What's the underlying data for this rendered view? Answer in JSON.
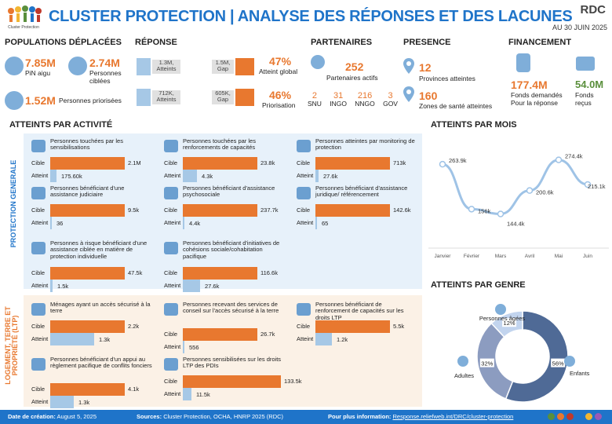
{
  "header": {
    "title": "CLUSTER PROTECTION | ANALYSE DES RÉPONSES ET DES LACUNES",
    "country": "RDC",
    "date": "AU 30 JUIN 2025",
    "logo_text": "Cluster Protection"
  },
  "populations": {
    "title": "POPULATIONS DÉPLACÉES",
    "pin_value": "7.85M",
    "pin_label": "PiN aigu",
    "cible_value": "2.74M",
    "cible_label": "Personnes ciblées",
    "prior_value": "1.52M",
    "prior_label": "Personnes priorisées"
  },
  "reponse": {
    "title": "RÉPONSE",
    "row1_left": "1.3M,",
    "row1_left2": "Atteints",
    "row1_right": "1.5M,",
    "row1_right2": "Gap",
    "row1_pct": "47%",
    "row1_label": "Atteint global",
    "row2_left": "712K,",
    "row2_left2": "Atteints",
    "row2_right": "605K,",
    "row2_right2": "Gap",
    "row2_pct": "46%",
    "row2_label": "Priorisation"
  },
  "partenaires": {
    "title": "PARTENAIRES",
    "total": "252",
    "total_label": "Partenaires actifs",
    "types": [
      {
        "value": "2",
        "label": "SNU"
      },
      {
        "value": "31",
        "label": "INGO"
      },
      {
        "value": "216",
        "label": "NNGO"
      },
      {
        "value": "3",
        "label": "GOV"
      }
    ]
  },
  "presence": {
    "title": "PRESENCE",
    "prov_value": "12",
    "prov_label": "Provinces atteintes",
    "zones_value": "160",
    "zones_label": "Zones de santé atteintes"
  },
  "financement": {
    "title": "FINANCEMENT",
    "demandes_value": "177.4M",
    "demandes_label": "Fonds demandés Pour la réponse",
    "recus_value": "54.0M",
    "recus_label": "Fonds reçus"
  },
  "activites": {
    "title": "ATTEINTS PAR ACTIVITÉ",
    "cible_label": "Cible",
    "atteint_label": "Atteint",
    "prot_label": "PROTECTION GENERALE",
    "ltp_label": "LOGEMENT, TERRE ET PROPRIÉTÉ (LTP)",
    "prot": [
      {
        "title": "Personnes touchées par les sensibilisations",
        "cible": "2.1M",
        "atteint": "175.60k",
        "cw": 95,
        "aw": 8
      },
      {
        "title": "Personnes touchées par les renforcements de capacités",
        "cible": "23.8k",
        "atteint": "4.3k",
        "cw": 95,
        "aw": 18
      },
      {
        "title": "Personnes atteintes par monitoring de protection",
        "cible": "713k",
        "atteint": "27.6k",
        "cw": 95,
        "aw": 4
      },
      {
        "title": "Personnes bénéficiant d'une assistance judiciaire",
        "cible": "9.5k",
        "atteint": "36",
        "cw": 95,
        "aw": 1
      },
      {
        "title": "Personnes bénéficiant d'assistance psychosociale",
        "cible": "237.7k",
        "atteint": "4.4k",
        "cw": 95,
        "aw": 2
      },
      {
        "title": "Personnes bénéficiant d'assistance juridique/ référencement",
        "cible": "142.6k",
        "atteint": "65",
        "cw": 95,
        "aw": 1
      },
      {
        "title": "Personnes à risque bénéficiant d'une assistance ciblée en matière de protection individuelle",
        "cible": "47.5k",
        "atteint": "1.5k",
        "cw": 95,
        "aw": 3
      },
      {
        "title": "Personnes bénéficiant d'initiatives de cohésions sociale/cohabitation pacifique",
        "cible": "116.6k",
        "atteint": "27.6k",
        "cw": 95,
        "aw": 22
      }
    ],
    "ltp": [
      {
        "title": "Ménages ayant un accès sécurisé à la terre",
        "cible": "2.2k",
        "atteint": "1.3k",
        "cw": 95,
        "aw": 56
      },
      {
        "title": "Personnes recevant des services de conseil sur l'accès sécurisé à la terre",
        "cible": "26.7k",
        "atteint": "556",
        "cw": 95,
        "aw": 2
      },
      {
        "title": "Personnes bénéficiant de renforcement de capacités sur les droits LTP",
        "cible": "5.5k",
        "atteint": "1.2k",
        "cw": 95,
        "aw": 21
      },
      {
        "title": "Personnes bénéficiant d'un appui au règlement pacifique de conflits fonciers",
        "cible": "4.1k",
        "atteint": "1.3k",
        "cw": 95,
        "aw": 30
      },
      {
        "title": "Personnes sensibilisées sur les droits LTP des PDIs",
        "cible": "133.5k",
        "atteint": "11.5k",
        "cw": 125,
        "aw": 11
      }
    ]
  },
  "mois": {
    "title": "ATTEINTS PAR MOIS"
  },
  "chart_data": {
    "type": "line",
    "categories": [
      "Janvier",
      "Février",
      "Mars",
      "Avril",
      "Mai",
      "Juin"
    ],
    "value_labels": [
      "263.9k",
      "156k",
      "144.4k",
      "200.6k",
      "274.4k",
      "215.1k"
    ],
    "values": [
      263.9,
      156,
      144.4,
      200.6,
      274.4,
      215.1
    ],
    "ylim": [
      100,
      300
    ]
  },
  "genre": {
    "title": "ATTEINTS PAR GENRE",
    "segments": [
      {
        "label": "Enfants",
        "pct": "56%",
        "value": 56,
        "color": "#4f6a96"
      },
      {
        "label": "Adultes",
        "pct": "32%",
        "value": 32,
        "color": "#8c9cc0"
      },
      {
        "label": "Personnes âgées",
        "pct": "12%",
        "value": 12,
        "color": "#c2d4ee"
      }
    ]
  },
  "footer": {
    "date_label": "Date de création:",
    "date_value": "August 5, 2025",
    "sources_label": "Sources:",
    "sources_value": "Cluster Protection, OCHA, HNRP 2025 (RDC)",
    "info_label": "Pour plus information:",
    "info_link": "Response.reliefweb.int/DRC/cluster-protection"
  }
}
